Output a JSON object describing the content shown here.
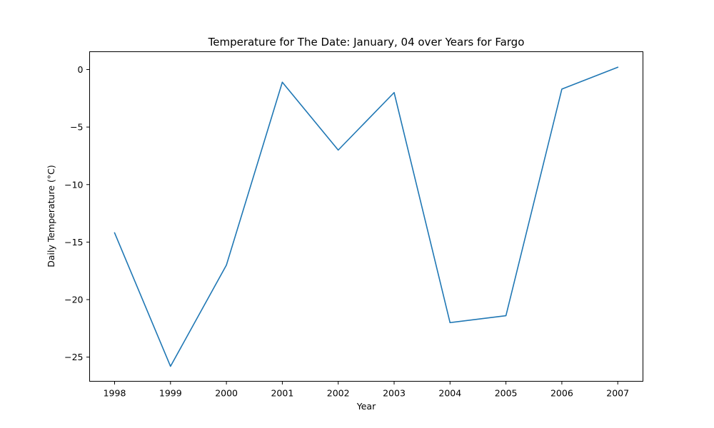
{
  "chart_data": {
    "type": "line",
    "title": "Temperature for The Date: January, 04 over Years for Fargo",
    "xlabel": "Year",
    "ylabel": "Daily Temperature (°C)",
    "x": [
      "1998",
      "1999",
      "2000",
      "2001",
      "2002",
      "2003",
      "2004",
      "2005",
      "2006",
      "2007"
    ],
    "series": [
      {
        "values": [
          -14.2,
          -25.8,
          -17.0,
          -1.1,
          -7.0,
          -2.0,
          -22.0,
          -21.4,
          -1.7,
          0.2
        ],
        "color": "#1f77b4"
      }
    ],
    "yticks": [
      0,
      -5,
      -10,
      -15,
      -20,
      -25
    ],
    "ytick_labels": [
      "0",
      "−5",
      "−10",
      "−15",
      "−20",
      "−25"
    ],
    "ylim": [
      -27.1,
      1.55
    ],
    "grid": false,
    "legend": "none"
  }
}
